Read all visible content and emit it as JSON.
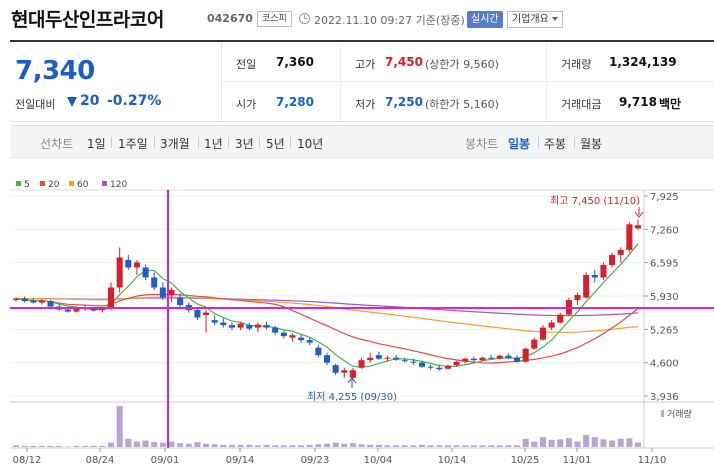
{
  "header": {
    "name": "현대두산인프라코어",
    "code": "042670",
    "market": "코스피",
    "datetime": "2022.11.10 09:27 기준(장중)",
    "realtime": "실시간",
    "company_info": "기업개요"
  },
  "summary": {
    "price": "7,340",
    "change_label": "전일대비",
    "change_value": "20",
    "change_pct": "-0.27%",
    "prev_close_label": "전일",
    "prev_close": "7,360",
    "high_label": "고가",
    "high": "7,450",
    "upper_limit": "(상한가 9,560)",
    "volume_label": "거래량",
    "volume": "1,324,139",
    "open_label": "시가",
    "open": "7,280",
    "low_label": "저가",
    "low": "7,250",
    "lower_limit": "(하한가 5,160)",
    "amount_label": "거래대금",
    "amount": "9,718",
    "amount_unit": "백만"
  },
  "toolbar": {
    "line_chart": "선차트",
    "periods": [
      "1일",
      "1주일",
      "3개월",
      "1년",
      "3년",
      "5년",
      "10년"
    ],
    "candle_chart": "봉차트",
    "candle_periods": [
      "일봉",
      "주봉",
      "월봉"
    ],
    "active_candle": "일봉"
  },
  "colors": {
    "up": "#d7202a",
    "down": "#1b5ec8",
    "ma5": "#4caf50",
    "ma20": "#e84848",
    "ma60": "#f0a030",
    "ma120": "#9b59c8",
    "crosshair": "#e020c8",
    "volume": "#b9a4d8"
  },
  "chart_data": {
    "type": "candlestick",
    "legend": [
      {
        "name": "5",
        "color": "#4caf50"
      },
      {
        "name": "20",
        "color": "#e84848"
      },
      {
        "name": "60",
        "color": "#f0a030"
      },
      {
        "name": "120",
        "color": "#9b59c8"
      }
    ],
    "y_ticks": [
      "7,925",
      "7,260",
      "6,595",
      "5,930",
      "5,265",
      "4,600",
      "3,936"
    ],
    "ylim": [
      3936,
      7925
    ],
    "x_ticks": [
      "08/12",
      "08/24",
      "09/01",
      "09/14",
      "09/23",
      "10/04",
      "10/14",
      "10/25",
      "11/01",
      "11/10"
    ],
    "high_annotation": "최고 7,450 (11/10)",
    "low_annotation": "최저 4,255 (09/30)",
    "volume_label": "거래량",
    "candles": [
      [
        5850,
        5900,
        5820,
        5880
      ],
      [
        5880,
        5920,
        5800,
        5830
      ],
      [
        5840,
        5890,
        5780,
        5800
      ],
      [
        5800,
        5860,
        5760,
        5840
      ],
      [
        5830,
        5850,
        5700,
        5720
      ],
      [
        5720,
        5760,
        5640,
        5660
      ],
      [
        5660,
        5700,
        5600,
        5620
      ],
      [
        5620,
        5720,
        5600,
        5700
      ],
      [
        5700,
        5760,
        5640,
        5680
      ],
      [
        5680,
        5720,
        5620,
        5640
      ],
      [
        5650,
        5700,
        5600,
        5680
      ],
      [
        5680,
        6200,
        5640,
        6100
      ],
      [
        6100,
        6900,
        6000,
        6700
      ],
      [
        6650,
        6750,
        6450,
        6500
      ],
      [
        6500,
        6650,
        6350,
        6600
      ],
      [
        6500,
        6560,
        6250,
        6300
      ],
      [
        6300,
        6400,
        6050,
        6100
      ],
      [
        6100,
        6200,
        5850,
        5900
      ],
      [
        5950,
        6100,
        5800,
        6050
      ],
      [
        5900,
        5980,
        5700,
        5750
      ],
      [
        5750,
        5800,
        5600,
        5650
      ],
      [
        5650,
        5700,
        5450,
        5500
      ],
      [
        5550,
        5650,
        5200,
        5600
      ],
      [
        5450,
        5550,
        5350,
        5400
      ],
      [
        5400,
        5480,
        5300,
        5350
      ],
      [
        5350,
        5400,
        5250,
        5300
      ],
      [
        5300,
        5420,
        5250,
        5380
      ],
      [
        5350,
        5400,
        5240,
        5280
      ],
      [
        5300,
        5400,
        5200,
        5360
      ],
      [
        5350,
        5420,
        5260,
        5300
      ],
      [
        5300,
        5340,
        5150,
        5200
      ],
      [
        5200,
        5240,
        5080,
        5130
      ],
      [
        5100,
        5180,
        5020,
        5150
      ],
      [
        5100,
        5160,
        5000,
        5050
      ],
      [
        5050,
        5100,
        4950,
        5000
      ],
      [
        4900,
        4960,
        4700,
        4750
      ],
      [
        4750,
        4800,
        4550,
        4600
      ],
      [
        4550,
        4580,
        4350,
        4400
      ],
      [
        4400,
        4500,
        4300,
        4450
      ],
      [
        4300,
        4500,
        4255,
        4450
      ],
      [
        4500,
        4700,
        4480,
        4650
      ],
      [
        4650,
        4800,
        4600,
        4700
      ],
      [
        4750,
        4820,
        4650,
        4680
      ],
      [
        4680,
        4740,
        4620,
        4700
      ],
      [
        4700,
        4760,
        4640,
        4660
      ],
      [
        4650,
        4700,
        4600,
        4640
      ],
      [
        4620,
        4680,
        4560,
        4600
      ],
      [
        4600,
        4640,
        4500,
        4520
      ],
      [
        4520,
        4560,
        4450,
        4500
      ],
      [
        4500,
        4560,
        4440,
        4470
      ],
      [
        4480,
        4560,
        4460,
        4540
      ],
      [
        4550,
        4640,
        4520,
        4620
      ],
      [
        4620,
        4700,
        4580,
        4680
      ],
      [
        4680,
        4720,
        4620,
        4650
      ],
      [
        4650,
        4720,
        4630,
        4700
      ],
      [
        4700,
        4760,
        4660,
        4680
      ],
      [
        4680,
        4760,
        4660,
        4740
      ],
      [
        4740,
        4780,
        4680,
        4700
      ],
      [
        4700,
        4750,
        4600,
        4620
      ],
      [
        4620,
        4900,
        4600,
        4880
      ],
      [
        4880,
        5100,
        4860,
        5060
      ],
      [
        5060,
        5350,
        5040,
        5300
      ],
      [
        5300,
        5450,
        5250,
        5400
      ],
      [
        5400,
        5600,
        5380,
        5560
      ],
      [
        5560,
        5900,
        5540,
        5850
      ],
      [
        5850,
        6000,
        5750,
        5950
      ],
      [
        5900,
        6400,
        5880,
        6350
      ],
      [
        6350,
        6450,
        6200,
        6300
      ],
      [
        6300,
        6600,
        6250,
        6550
      ],
      [
        6550,
        6800,
        6500,
        6750
      ],
      [
        6750,
        6900,
        6600,
        6850
      ],
      [
        6850,
        7400,
        6800,
        7360
      ],
      [
        7280,
        7450,
        7250,
        7340
      ]
    ],
    "volumes": [
      3,
      2,
      2,
      2,
      2,
      2,
      1,
      2,
      2,
      2,
      2,
      8,
      75,
      15,
      10,
      12,
      9,
      8,
      10,
      7,
      6,
      9,
      6,
      5,
      4,
      4,
      4,
      4,
      3,
      4,
      3,
      3,
      3,
      3,
      4,
      5,
      6,
      8,
      6,
      7,
      5,
      4,
      4,
      3,
      3,
      3,
      3,
      4,
      3,
      3,
      3,
      3,
      3,
      3,
      3,
      3,
      3,
      3,
      3,
      15,
      10,
      18,
      13,
      14,
      16,
      10,
      22,
      18,
      14,
      12,
      15,
      16,
      8
    ]
  }
}
